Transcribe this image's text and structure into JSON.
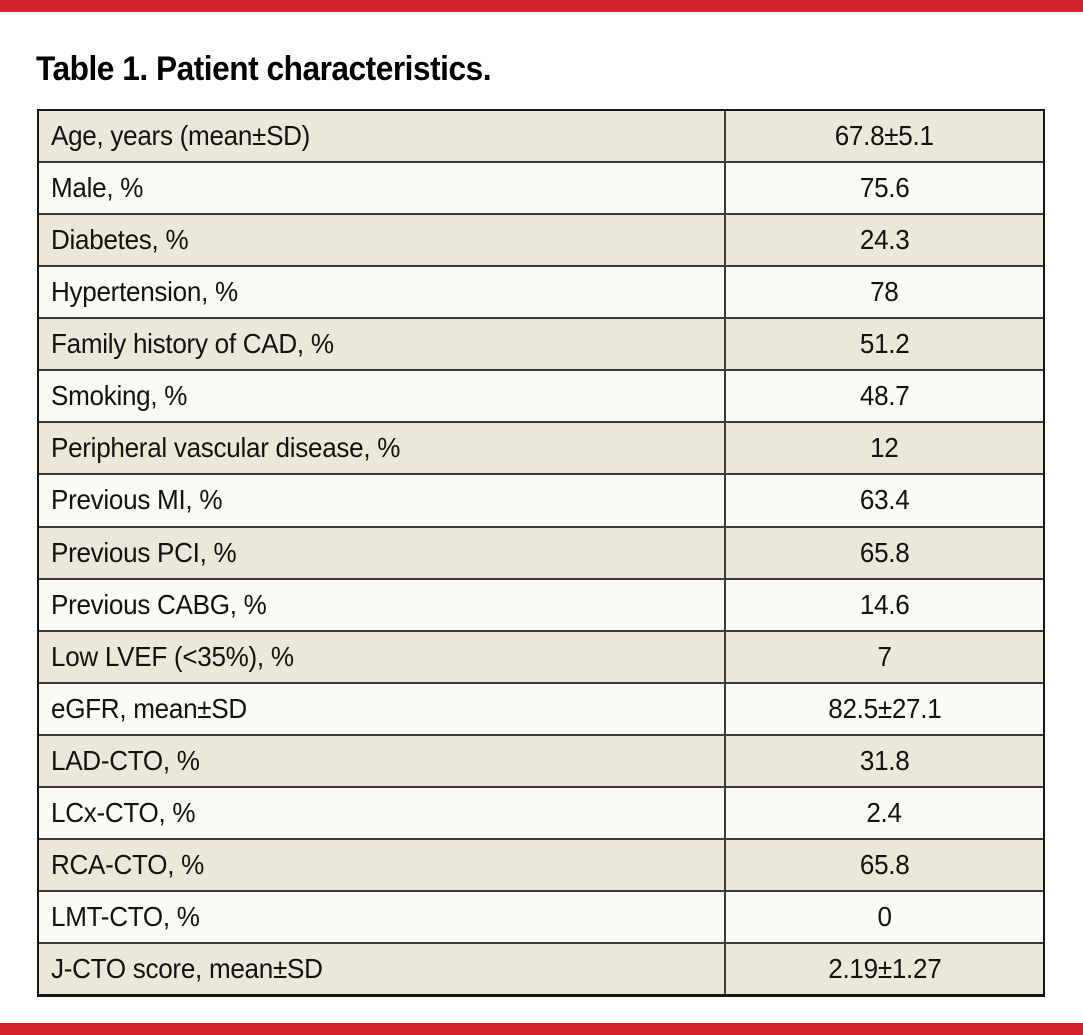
{
  "table": {
    "title": "Table 1. Patient characteristics.",
    "rows": [
      {
        "label": "Age, years (mean±SD)",
        "value": "67.8±5.1"
      },
      {
        "label": "Male, %",
        "value": "75.6"
      },
      {
        "label": "Diabetes, %",
        "value": "24.3"
      },
      {
        "label": "Hypertension, %",
        "value": "78"
      },
      {
        "label": "Family history of CAD, %",
        "value": "51.2"
      },
      {
        "label": "Smoking, %",
        "value": "48.7"
      },
      {
        "label": "Peripheral vascular disease, %",
        "value": "12"
      },
      {
        "label": "Previous MI, %",
        "value": "63.4"
      },
      {
        "label": "Previous PCI, %",
        "value": "65.8"
      },
      {
        "label": "Previous CABG, %",
        "value": "14.6"
      },
      {
        "label": "Low LVEF (<35%), %",
        "value": "7"
      },
      {
        "label": "eGFR, mean±SD",
        "value": "82.5±27.1"
      },
      {
        "label": "LAD-CTO, %",
        "value": "31.8"
      },
      {
        "label": "LCx-CTO, %",
        "value": "2.4"
      },
      {
        "label": "RCA-CTO, %",
        "value": "65.8"
      },
      {
        "label": "LMT-CTO, %",
        "value": "0"
      },
      {
        "label": "J-CTO score, mean±SD",
        "value": "2.19±1.27"
      }
    ]
  },
  "colors": {
    "accent_red": "#d2232a",
    "row_shaded": "#ece8d9",
    "row_plain": "#fbfaf5",
    "border_dark": "#161616",
    "text": "#121212"
  }
}
